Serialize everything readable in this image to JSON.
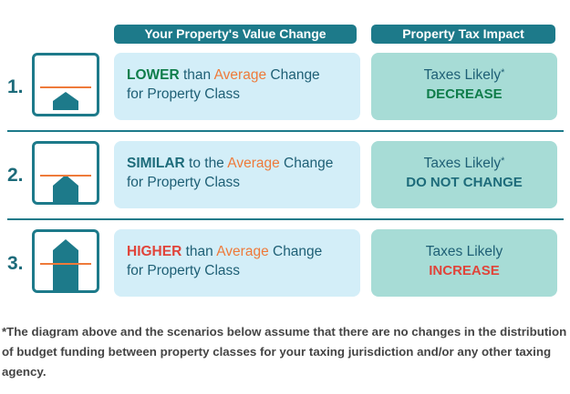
{
  "headers": {
    "value_change": "Your Property's Value Change",
    "tax_impact": "Property Tax Impact"
  },
  "rows": [
    {
      "number": "1.",
      "keyword": "LOWER",
      "mid": " than ",
      "avg": "Average",
      "tail": " Change",
      "line2": "for Property Class",
      "tax_line1": "Taxes Likely",
      "tax_star": "*",
      "tax_outcome": "DECREASE"
    },
    {
      "number": "2.",
      "keyword": "SIMILAR",
      "mid": " to the ",
      "avg": "Average",
      "tail": " Change",
      "line2": "for Property Class",
      "tax_line1": "Taxes Likely",
      "tax_star": "*",
      "tax_outcome": "DO NOT CHANGE"
    },
    {
      "number": "3.",
      "keyword": "HIGHER",
      "mid": " than ",
      "avg": "Average",
      "tail": " Change",
      "line2": "for Property Class",
      "tax_line1": "Taxes Likely",
      "tax_star": "",
      "tax_outcome": "INCREASE"
    }
  ],
  "footnote": "*The diagram above and the scenarios below assume that there are no changes in the distribution of budget funding between property classes for your taxing jurisdiction and/or any other taxing agency.",
  "colors": {
    "teal": "#1d7a8a",
    "green": "#0f7d4a",
    "orange": "#ee7a3a",
    "red": "#e0443a",
    "light_blue": "#d3eef8",
    "light_teal": "#a7dcd6"
  }
}
